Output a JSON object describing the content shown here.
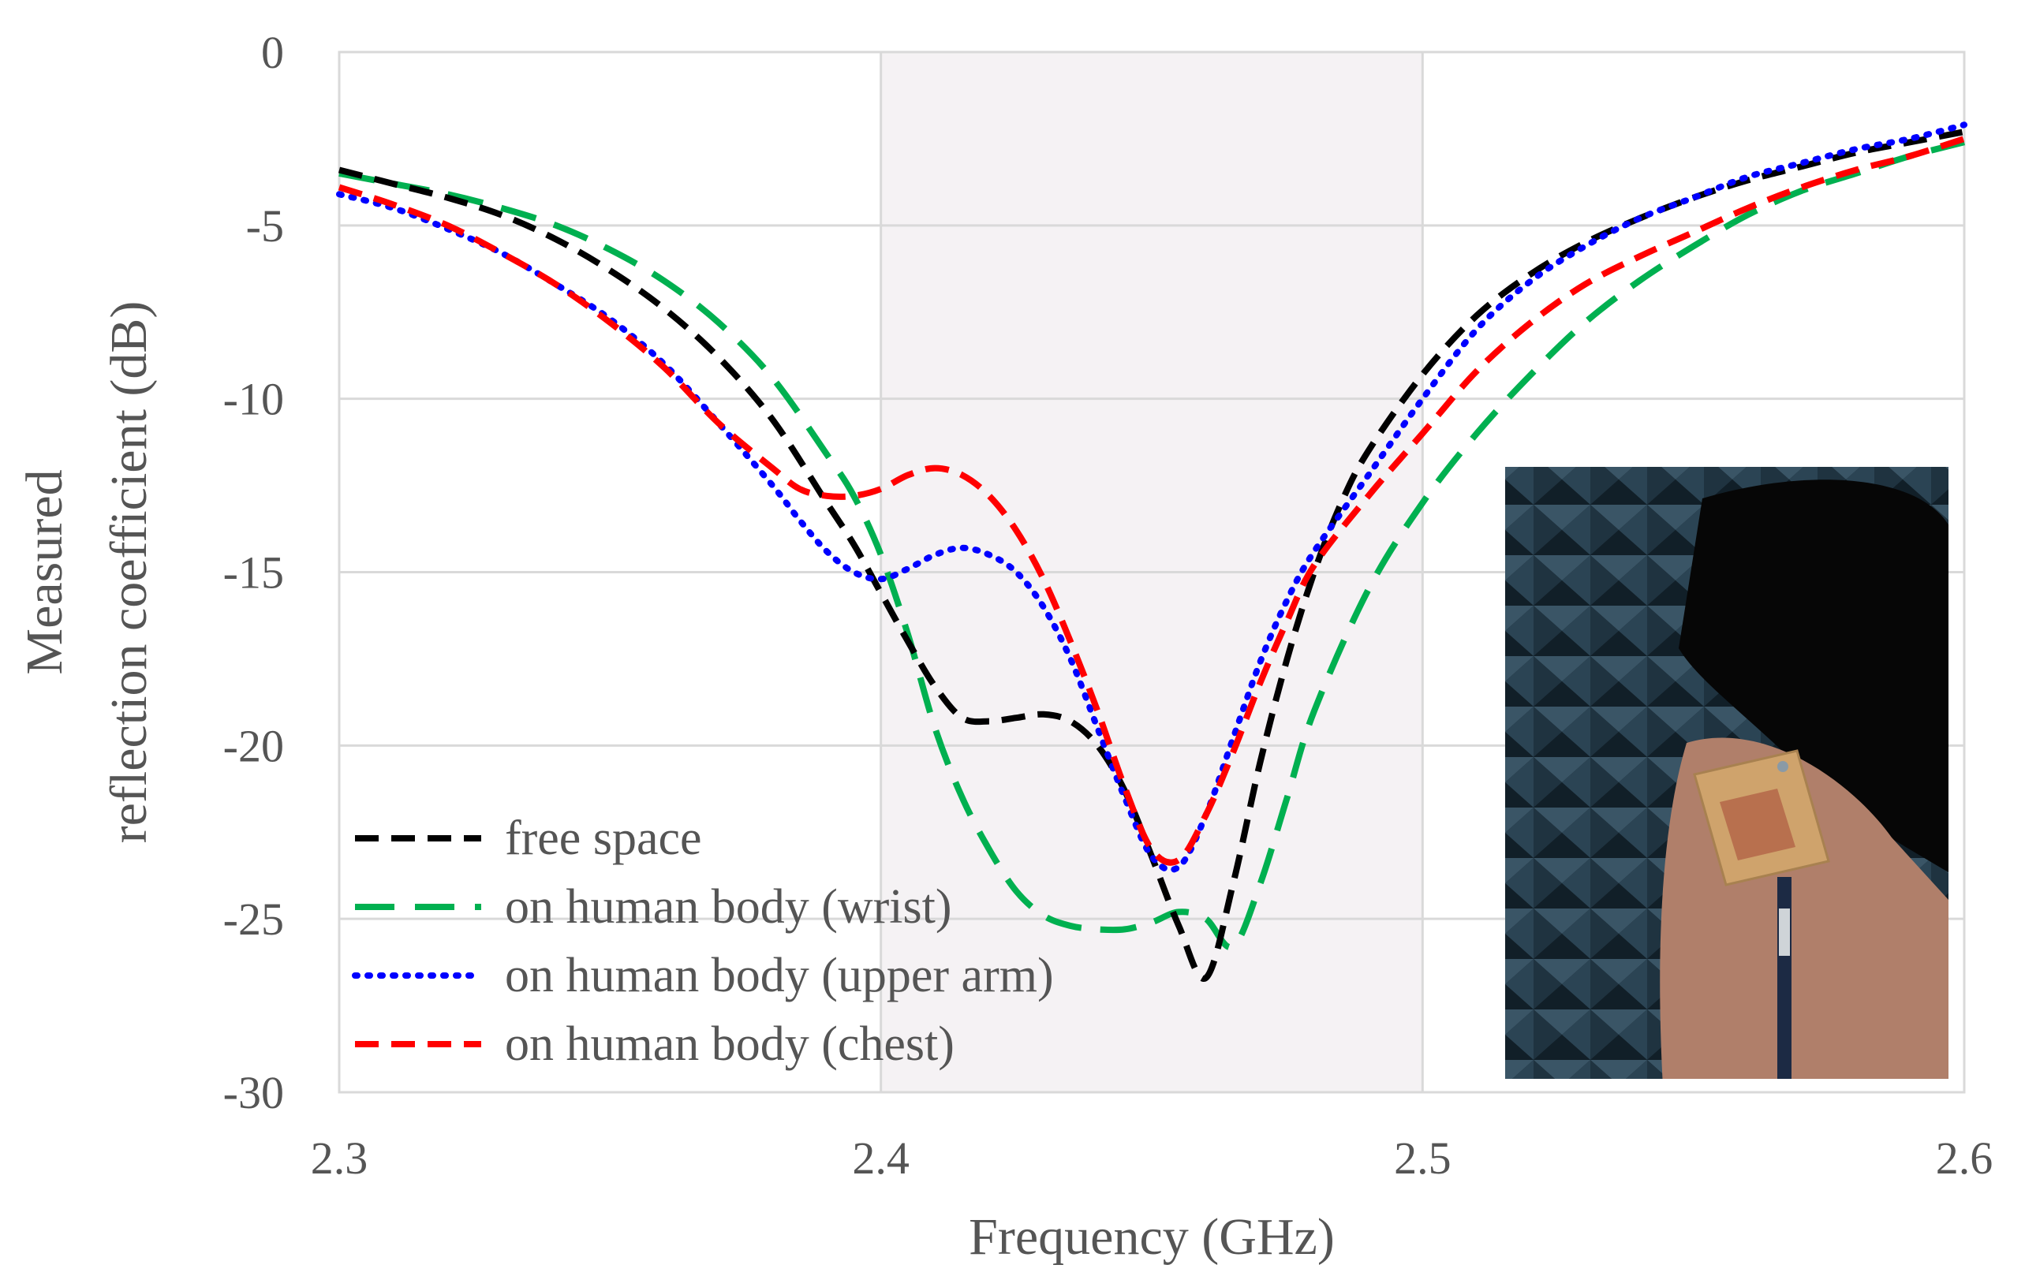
{
  "chart_data": {
    "type": "line",
    "xlabel": "Frequency (GHz)",
    "ylabel_lines": [
      "Measured",
      "reflection coefficient (dB)"
    ],
    "xlim": [
      2.3,
      2.6
    ],
    "ylim": [
      -30,
      0
    ],
    "x_ticks": [
      2.3,
      2.4,
      2.5,
      2.6
    ],
    "x_tick_labels": [
      "2.3",
      "2.4",
      "2.5",
      "2.6"
    ],
    "y_ticks": [
      0,
      -5,
      -10,
      -15,
      -20,
      -25,
      -30
    ],
    "y_tick_labels": [
      "0",
      "-5",
      "-10",
      "-15",
      "-20",
      "-25",
      "-30"
    ],
    "grid": true,
    "highlight_band": [
      2.4,
      2.5
    ],
    "legend_position": "bottom-left",
    "series": [
      {
        "name": "free space",
        "color": "#000000",
        "style": "dashed",
        "x": [
          2.3,
          2.31,
          2.32,
          2.33,
          2.34,
          2.35,
          2.36,
          2.37,
          2.38,
          2.39,
          2.395,
          2.4,
          2.405,
          2.41,
          2.415,
          2.42,
          2.425,
          2.43,
          2.435,
          2.44,
          2.445,
          2.45,
          2.455,
          2.46,
          2.465,
          2.47,
          2.475,
          2.48,
          2.485,
          2.49,
          2.5,
          2.51,
          2.52,
          2.53,
          2.54,
          2.55,
          2.56,
          2.57,
          2.58,
          2.59,
          2.6
        ],
        "y": [
          -3.4,
          -3.8,
          -4.2,
          -4.7,
          -5.4,
          -6.3,
          -7.4,
          -8.8,
          -10.6,
          -13.0,
          -14.2,
          -15.6,
          -17.0,
          -18.3,
          -19.2,
          -19.3,
          -19.2,
          -19.1,
          -19.3,
          -20.0,
          -21.3,
          -23.2,
          -25.2,
          -26.7,
          -24.0,
          -20.5,
          -17.5,
          -15.0,
          -13.0,
          -11.5,
          -9.3,
          -7.6,
          -6.4,
          -5.5,
          -4.8,
          -4.2,
          -3.7,
          -3.3,
          -2.9,
          -2.6,
          -2.3
        ]
      },
      {
        "name": "on human body (wrist)",
        "color": "#00b050",
        "style": "long-dashed",
        "x": [
          2.3,
          2.31,
          2.32,
          2.33,
          2.34,
          2.35,
          2.36,
          2.37,
          2.38,
          2.39,
          2.395,
          2.4,
          2.405,
          2.41,
          2.415,
          2.42,
          2.425,
          2.43,
          2.435,
          2.44,
          2.445,
          2.45,
          2.455,
          2.46,
          2.465,
          2.47,
          2.475,
          2.48,
          2.49,
          2.5,
          2.51,
          2.52,
          2.53,
          2.54,
          2.55,
          2.56,
          2.57,
          2.58,
          2.59,
          2.6
        ],
        "y": [
          -3.5,
          -3.8,
          -4.1,
          -4.5,
          -5.0,
          -5.7,
          -6.6,
          -7.8,
          -9.4,
          -11.6,
          -12.8,
          -14.5,
          -16.8,
          -19.5,
          -21.5,
          -23.0,
          -24.2,
          -24.9,
          -25.2,
          -25.3,
          -25.3,
          -25.1,
          -24.8,
          -25.0,
          -25.8,
          -24.0,
          -21.5,
          -19.0,
          -15.5,
          -13.0,
          -11.0,
          -9.3,
          -7.8,
          -6.6,
          -5.6,
          -4.7,
          -4.0,
          -3.5,
          -3.0,
          -2.6
        ]
      },
      {
        "name": "on human body (upper arm)",
        "color": "#0000ff",
        "style": "dotted",
        "x": [
          2.3,
          2.31,
          2.32,
          2.33,
          2.34,
          2.35,
          2.36,
          2.37,
          2.38,
          2.385,
          2.39,
          2.395,
          2.4,
          2.405,
          2.41,
          2.415,
          2.42,
          2.425,
          2.43,
          2.435,
          2.44,
          2.445,
          2.45,
          2.455,
          2.46,
          2.465,
          2.47,
          2.475,
          2.48,
          2.49,
          2.5,
          2.51,
          2.52,
          2.53,
          2.54,
          2.55,
          2.56,
          2.57,
          2.58,
          2.59,
          2.6
        ],
        "y": [
          -4.1,
          -4.5,
          -5.1,
          -5.8,
          -6.7,
          -7.7,
          -9.0,
          -10.7,
          -12.5,
          -13.5,
          -14.4,
          -15.0,
          -15.2,
          -14.9,
          -14.5,
          -14.3,
          -14.5,
          -15.0,
          -16.0,
          -17.5,
          -19.5,
          -21.5,
          -23.2,
          -23.5,
          -22.0,
          -19.8,
          -17.6,
          -15.8,
          -14.4,
          -12.2,
          -10.0,
          -8.0,
          -6.6,
          -5.6,
          -4.8,
          -4.2,
          -3.6,
          -3.2,
          -2.8,
          -2.5,
          -2.1
        ]
      },
      {
        "name": "on human body (chest)",
        "color": "#ff0000",
        "style": "dashed",
        "x": [
          2.3,
          2.31,
          2.32,
          2.33,
          2.34,
          2.35,
          2.36,
          2.37,
          2.38,
          2.385,
          2.39,
          2.395,
          2.4,
          2.405,
          2.41,
          2.415,
          2.42,
          2.425,
          2.43,
          2.435,
          2.44,
          2.445,
          2.45,
          2.455,
          2.46,
          2.465,
          2.47,
          2.475,
          2.48,
          2.49,
          2.5,
          2.51,
          2.52,
          2.53,
          2.54,
          2.55,
          2.56,
          2.57,
          2.58,
          2.59,
          2.6
        ],
        "y": [
          -3.9,
          -4.4,
          -5.0,
          -5.8,
          -6.7,
          -7.8,
          -9.1,
          -10.7,
          -12.0,
          -12.6,
          -12.8,
          -12.8,
          -12.6,
          -12.2,
          -12.0,
          -12.2,
          -12.8,
          -13.8,
          -15.2,
          -17.0,
          -19.0,
          -21.2,
          -23.0,
          -23.3,
          -22.0,
          -20.2,
          -18.2,
          -16.4,
          -14.8,
          -12.8,
          -11.0,
          -9.2,
          -7.8,
          -6.7,
          -5.9,
          -5.2,
          -4.5,
          -3.9,
          -3.4,
          -3.0,
          -2.5
        ]
      }
    ]
  }
}
